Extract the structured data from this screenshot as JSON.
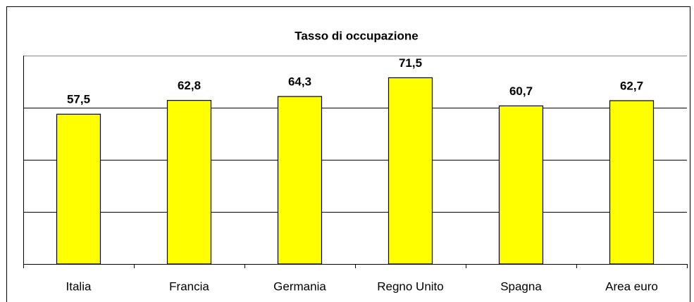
{
  "chart_data": {
    "type": "bar",
    "title": "Tasso di occupazione",
    "categories": [
      "Italia",
      "Francia",
      "Germania",
      "Regno Unito",
      "Spagna",
      "Area euro"
    ],
    "values": [
      57.5,
      62.8,
      64.3,
      71.5,
      60.7,
      62.7
    ],
    "value_labels": [
      "57,5",
      "62,8",
      "64,3",
      "71,5",
      "60,7",
      "62,7"
    ],
    "color": "#ffff00",
    "ylim": [
      0,
      80
    ],
    "yticks": [
      0,
      20,
      40,
      60,
      80
    ],
    "grid": true
  }
}
